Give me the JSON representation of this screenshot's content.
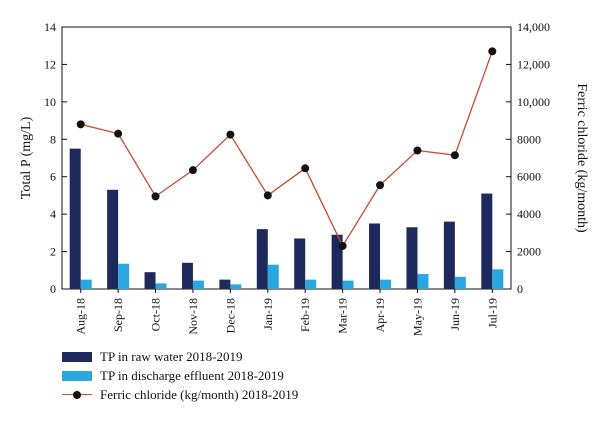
{
  "chart_data": {
    "type": "bar+line",
    "categories": [
      "Aug-18",
      "Sep-18",
      "Oct-18",
      "Nov-18",
      "Dec-18",
      "Jan-19",
      "Feb-19",
      "Mar-19",
      "Apr-19",
      "May-19",
      "Jun-19",
      "Jul-19"
    ],
    "y_left": {
      "label": "Total P (mg/L)",
      "min": 0,
      "max": 14,
      "ticks": [
        "0",
        "2",
        "4",
        "6",
        "8",
        "10",
        "12",
        "14"
      ]
    },
    "y_right": {
      "label": "Ferric chloride (kg/month)",
      "min": 0,
      "max": 14000,
      "ticks": [
        "0",
        "2000",
        "4000",
        "6000",
        "8000",
        "10,000",
        "12,000",
        "14,000"
      ]
    },
    "series": [
      {
        "name": "TP in raw water 2018-2019",
        "kind": "bar",
        "axis": "left",
        "color": "#1e2a5e",
        "values": [
          7.5,
          5.3,
          0.9,
          1.4,
          0.5,
          3.2,
          2.7,
          2.9,
          3.5,
          3.3,
          3.6,
          5.1
        ]
      },
      {
        "name": "TP in discharge effluent 2018-2019",
        "kind": "bar",
        "axis": "left",
        "color": "#2aa7e0",
        "values": [
          0.5,
          1.35,
          0.3,
          0.45,
          0.25,
          1.3,
          0.5,
          0.45,
          0.5,
          0.8,
          0.65,
          1.05
        ]
      },
      {
        "name": "Ferric chloride (kg/month) 2018-2019",
        "kind": "line",
        "axis": "right",
        "color": "#c94a2f",
        "marker_color": "#111111",
        "values": [
          8800,
          8300,
          4950,
          6350,
          8250,
          5000,
          6450,
          2300,
          5550,
          7400,
          7150,
          12700
        ]
      }
    ],
    "grid": false,
    "legend_position": "bottom-left"
  }
}
